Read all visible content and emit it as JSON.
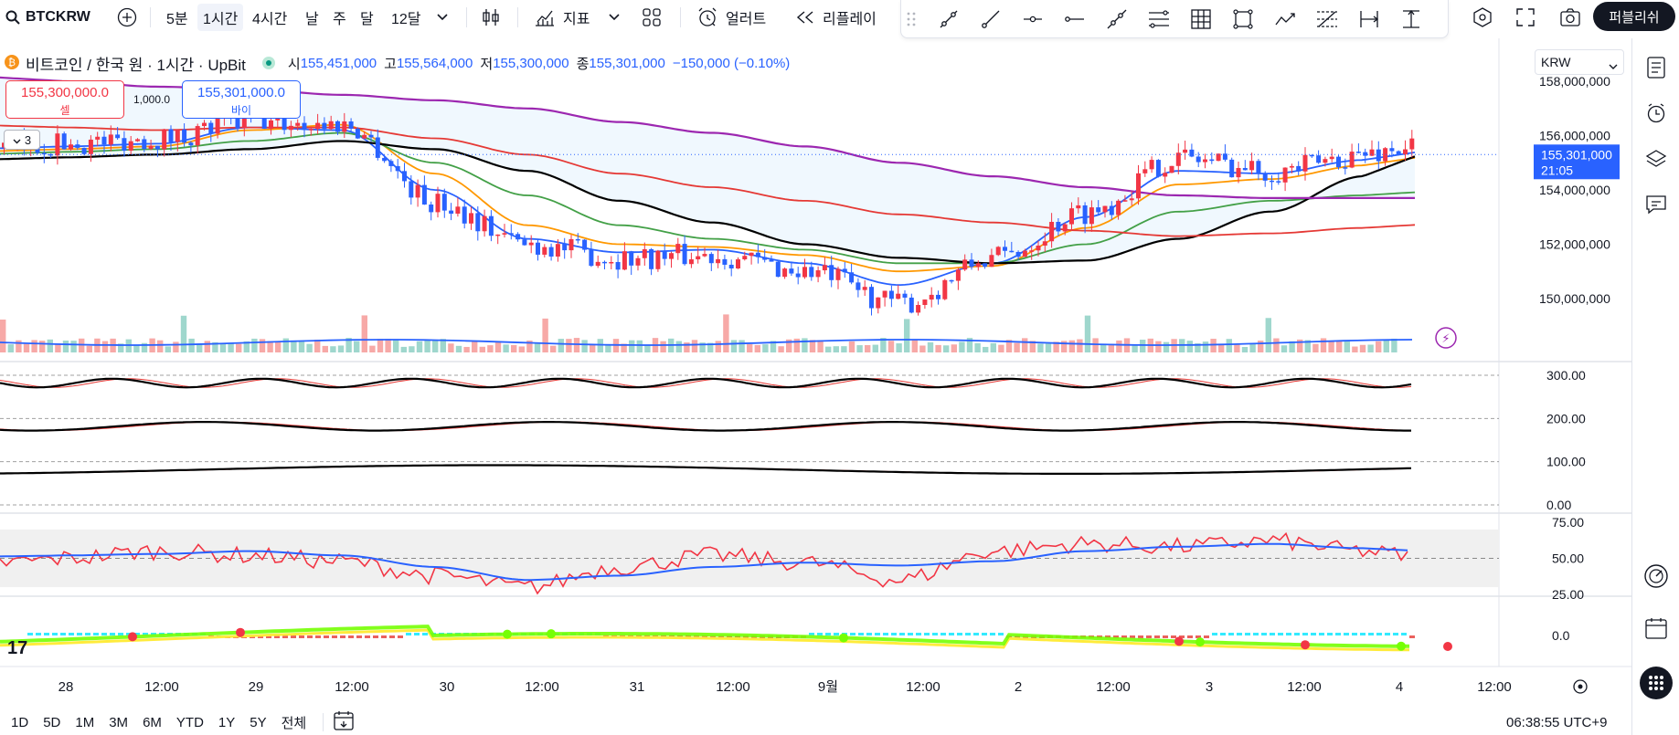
{
  "toolbar": {
    "symbol": "BTCKRW",
    "intervals": [
      "5분",
      "1시간",
      "4시간",
      "날",
      "주",
      "달",
      "12달"
    ],
    "active_interval": "1시간",
    "indicators_label": "지표",
    "alert_label": "얼러트",
    "replay_label": "리플레이",
    "publish_label": "퍼블리쉬"
  },
  "legend": {
    "title": "비트코인 / 한국 원 · 1시간 · UpBit",
    "open_key": "시",
    "open": "155,451,000",
    "high_key": "고",
    "high": "155,564,000",
    "low_key": "저",
    "low": "155,300,000",
    "close_key": "종",
    "close": "155,301,000",
    "change": "−150,000 (−0.10%)"
  },
  "currency": "KRW",
  "orders": {
    "sell_price": "155,300,000.0",
    "sell_label": "셀",
    "buy_price": "155,301,000.0",
    "buy_label": "바이",
    "quantity": "1,000.0"
  },
  "collapse_label": "3",
  "price_scale": {
    "ticks": [
      "158,000,000",
      "156,000,000",
      "154,000,000",
      "152,000,000",
      "150,000,000"
    ],
    "last_price": "155,301,000",
    "countdown": "21:05"
  },
  "stoch_scale": [
    "300.00",
    "200.00",
    "100.00",
    "0.00"
  ],
  "rsi_scale": [
    "75.00",
    "50.00",
    "25.00"
  ],
  "osc_scale": [
    "0.0"
  ],
  "time_ticks": [
    "28",
    "12:00",
    "29",
    "12:00",
    "30",
    "12:00",
    "31",
    "12:00",
    "9월",
    "12:00",
    "2",
    "12:00",
    "3",
    "12:00",
    "4",
    "12:00"
  ],
  "ranges": [
    "1D",
    "5D",
    "1M",
    "3M",
    "6M",
    "YTD",
    "1Y",
    "5Y",
    "전체"
  ],
  "clock": "06:38:55 UTC+9",
  "colors": {
    "up": "#f23645",
    "down": "#2962ff",
    "ema_orange": "#ff9800",
    "ema_green": "#43a047",
    "ma_black": "#000000",
    "ma_red": "#e53935",
    "ma_purple": "#9c27b0"
  },
  "chart_data": {
    "type": "line",
    "x": [
      "28",
      "12:00",
      "29",
      "12:00",
      "30",
      "12:00",
      "31",
      "12:00",
      "9월",
      "12:00",
      "2",
      "12:00",
      "3",
      "12:00",
      "4"
    ],
    "ylim": [
      148000000,
      158000000
    ],
    "series": [
      {
        "values": [
          155700000,
          155900000,
          156500000,
          156400000,
          153500000,
          152000000,
          151500000,
          151600000,
          151000000,
          149800000,
          151500000,
          153200000,
          155200000,
          154700000,
          155300000
        ]
      }
    ],
    "moving_averages": [
      {
        "color": "#2962ff",
        "values": [
          155600000,
          155700000,
          156300000,
          156200000,
          154000000,
          152200000,
          151700000,
          151800000,
          151300000,
          150500000,
          151300000,
          153000000,
          154700000,
          154600000,
          155100000
        ]
      },
      {
        "color": "#ff9800",
        "values": [
          155500000,
          155600000,
          156200000,
          156400000,
          154600000,
          152700000,
          152000000,
          151900000,
          151600000,
          151000000,
          151200000,
          152600000,
          154200000,
          154400000,
          154900000
        ]
      },
      {
        "color": "#43a047",
        "values": [
          155400000,
          155500000,
          155800000,
          156100000,
          155000000,
          153800000,
          152700000,
          152200000,
          151800000,
          151300000,
          151300000,
          152000000,
          153200000,
          153600000,
          153800000
        ]
      },
      {
        "color": "#000000",
        "values": [
          155200000,
          155300000,
          155500000,
          155800000,
          155500000,
          154700000,
          153600000,
          152800000,
          152000000,
          151500000,
          151300000,
          151400000,
          152200000,
          153200000,
          154500000
        ]
      },
      {
        "color": "#e53935",
        "values": [
          156300000,
          156200000,
          156300000,
          156300000,
          155900000,
          155300000,
          154600000,
          154100000,
          153600000,
          153100000,
          152800000,
          152500000,
          152300000,
          152400000,
          152600000
        ]
      },
      {
        "color": "#9c27b0",
        "values": [
          158000000,
          157800000,
          157700000,
          157500000,
          157300000,
          157000000,
          156500000,
          156100000,
          155600000,
          155000000,
          154500000,
          154100000,
          153800000,
          153700000,
          153700000
        ]
      }
    ],
    "rsi": [
      50,
      55,
      52,
      48,
      38,
      30,
      44,
      52,
      47,
      35,
      55,
      60,
      58,
      62,
      55
    ],
    "rsi_ma": [
      52,
      53,
      55,
      52,
      44,
      35,
      38,
      44,
      47,
      45,
      48,
      55,
      58,
      60,
      57
    ],
    "stoch_levels": [
      300,
      200,
      100,
      0
    ]
  }
}
